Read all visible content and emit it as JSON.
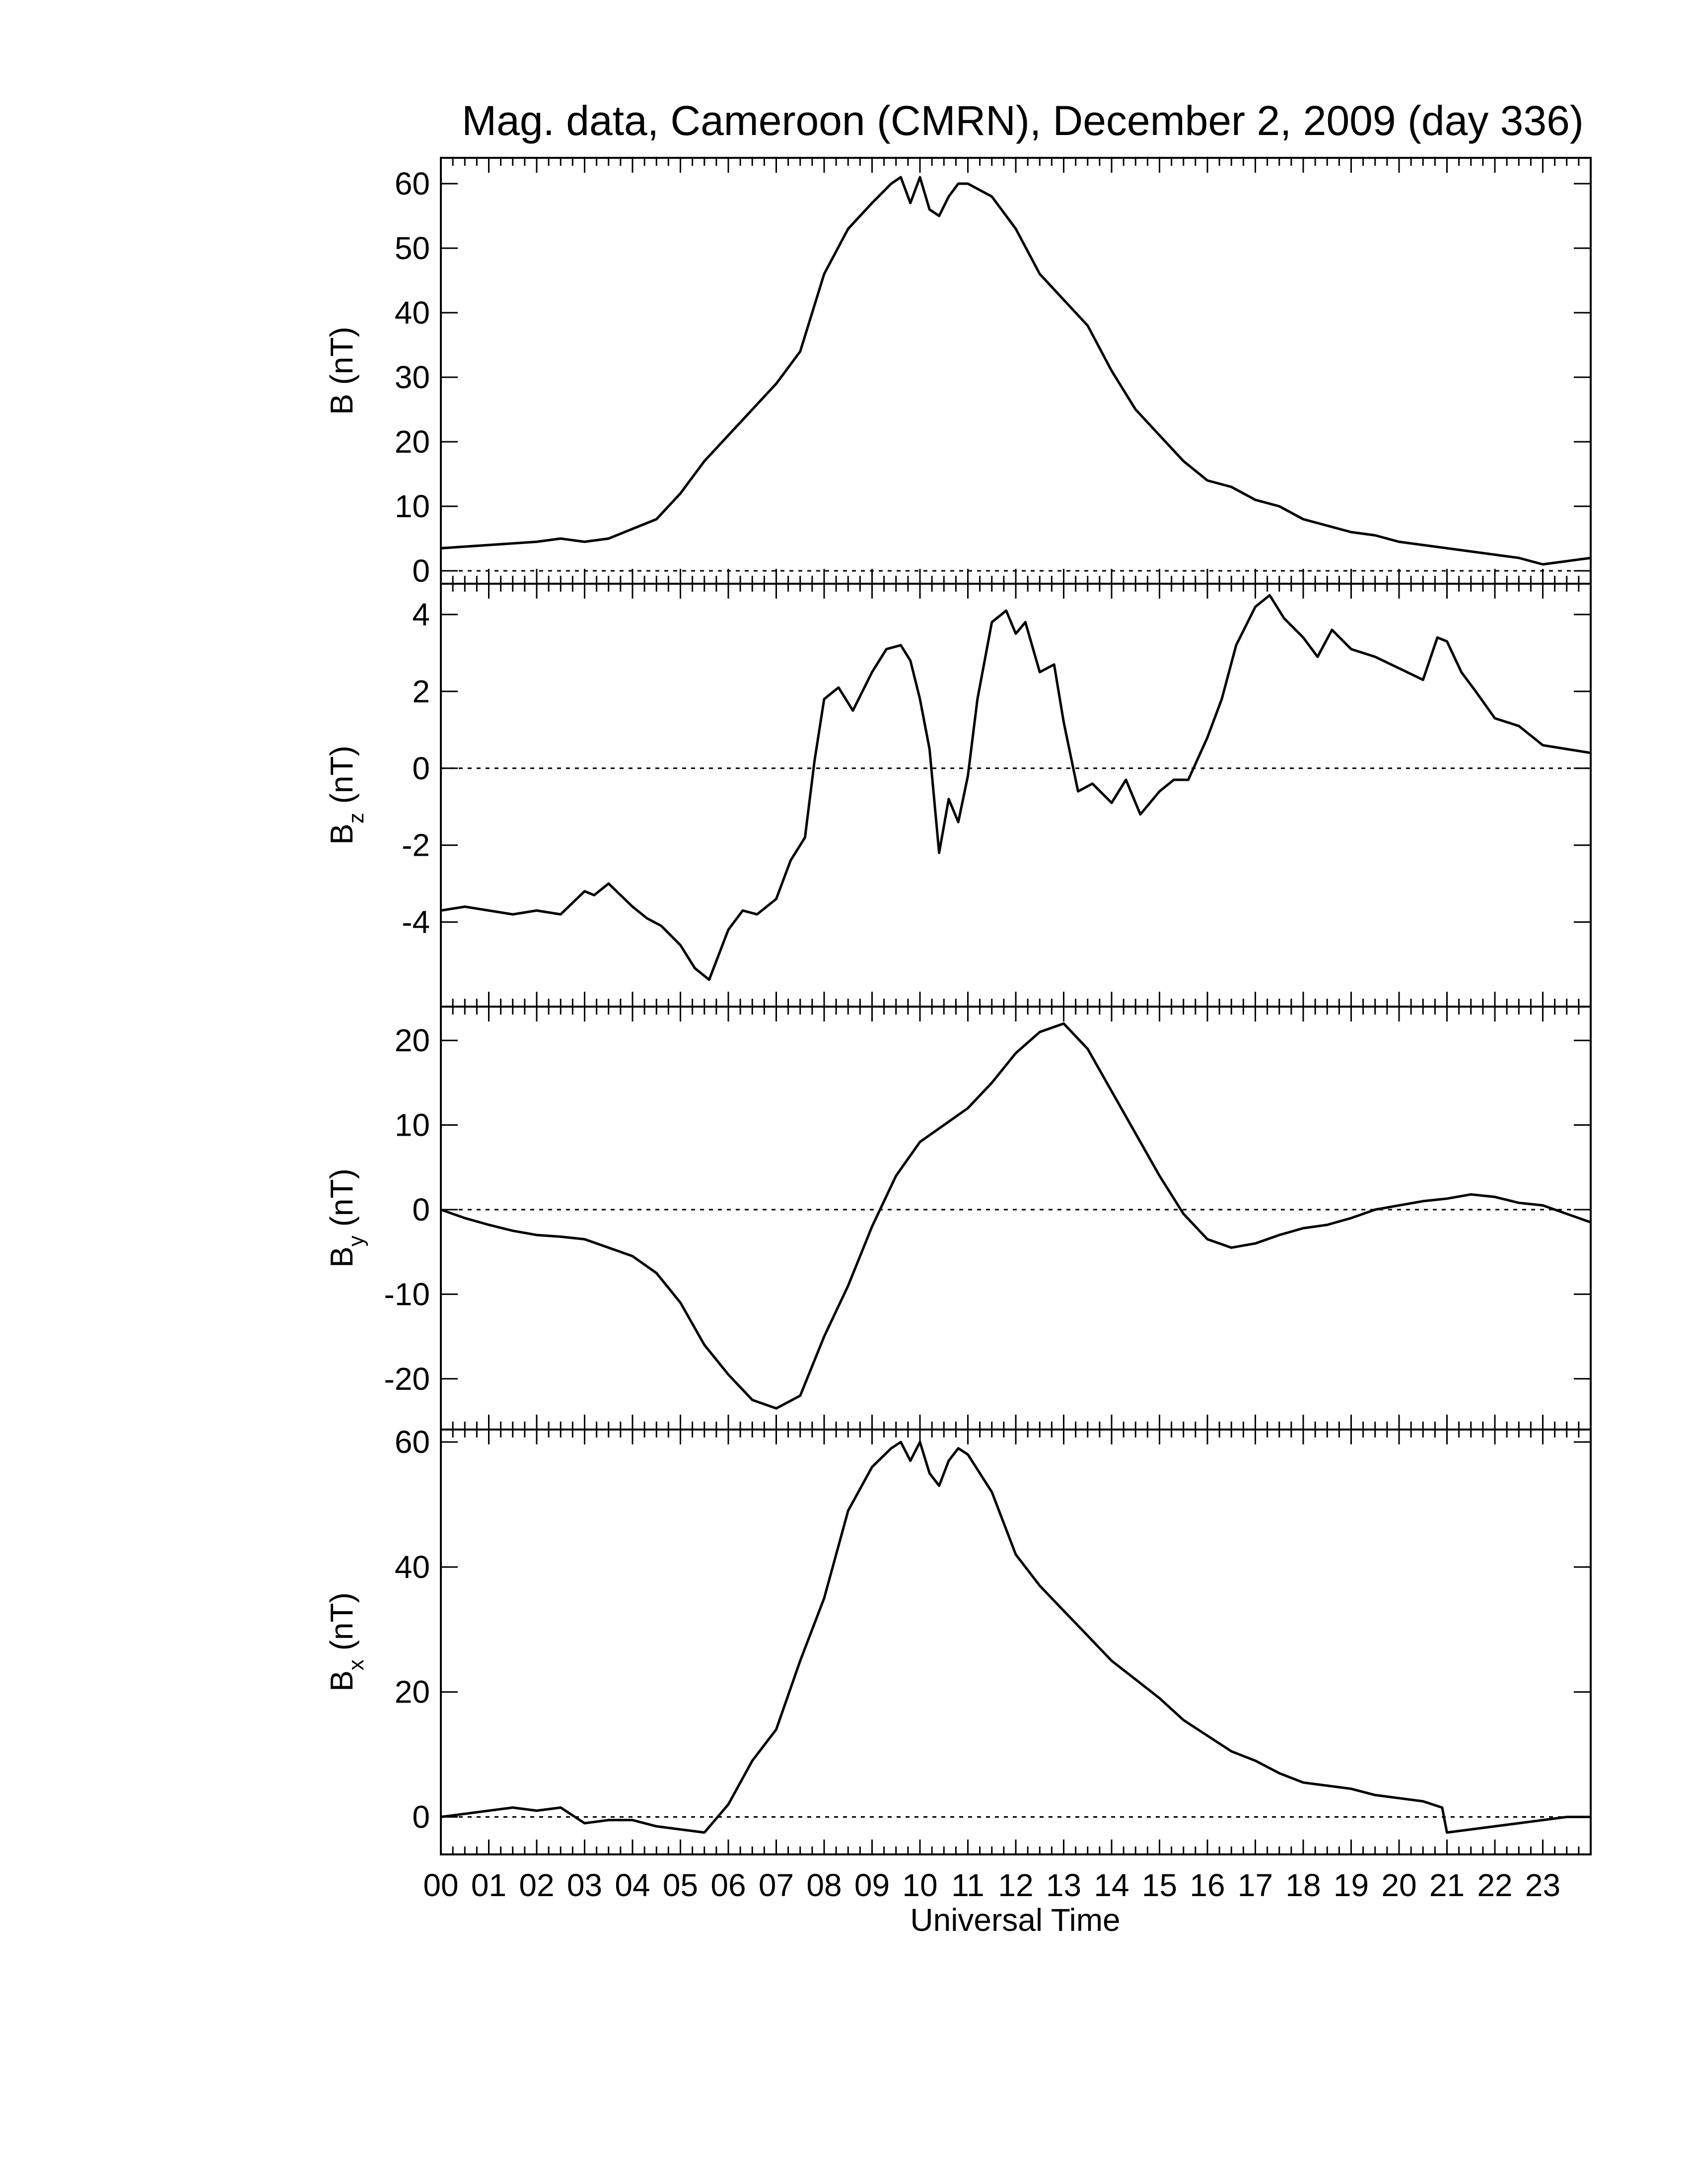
{
  "title": "Mag. data, Cameroon (CMRN), December 2, 2009 (day 336)",
  "chart_data": [
    {
      "type": "line",
      "panel": "B",
      "ylabel": "B (nT)",
      "ylabel_main": "B",
      "ylabel_sub": "",
      "ylabel_unit": "(nT)",
      "ylim": [
        -2,
        64
      ],
      "yticks": [
        0,
        10,
        20,
        30,
        40,
        50,
        60
      ],
      "zero_line": true,
      "x": [
        0,
        1,
        2,
        2.5,
        3,
        3.5,
        4,
        4.5,
        5,
        5.5,
        6,
        6.5,
        7,
        7.5,
        8,
        8.5,
        9,
        9.4,
        9.6,
        9.8,
        10,
        10.2,
        10.4,
        10.6,
        10.8,
        11,
        11.5,
        12,
        12.5,
        13,
        13.5,
        14,
        14.5,
        15,
        15.5,
        16,
        16.5,
        17,
        17.5,
        18,
        18.5,
        19,
        19.5,
        20,
        20.5,
        21,
        21.5,
        22,
        22.5,
        23,
        23.5,
        24
      ],
      "y": [
        3.5,
        4,
        4.5,
        5,
        4.5,
        5,
        6.5,
        8,
        12,
        17,
        21,
        25,
        29,
        34,
        46,
        53,
        57,
        60,
        61,
        57,
        61,
        56,
        55,
        58,
        60,
        60,
        58,
        53,
        46,
        42,
        38,
        31,
        25,
        21,
        17,
        14,
        13,
        11,
        10,
        8,
        7,
        6,
        5.5,
        4.5,
        4,
        3.5,
        3,
        2.5,
        2,
        1,
        1.5,
        2
      ]
    },
    {
      "type": "line",
      "panel": "Bz",
      "ylabel": "Bz (nT)",
      "ylabel_main": "B",
      "ylabel_sub": "z",
      "ylabel_unit": "(nT)",
      "ylim": [
        -6.2,
        4.8
      ],
      "yticks": [
        -4,
        -2,
        0,
        2,
        4
      ],
      "zero_line": true,
      "x": [
        0,
        0.5,
        1,
        1.5,
        2,
        2.5,
        3,
        3.2,
        3.5,
        4,
        4.3,
        4.6,
        5,
        5.3,
        5.6,
        6,
        6.3,
        6.6,
        7,
        7.3,
        7.6,
        7.8,
        8,
        8.3,
        8.6,
        9,
        9.3,
        9.6,
        9.8,
        10,
        10.2,
        10.4,
        10.6,
        10.8,
        11,
        11.2,
        11.5,
        11.8,
        12,
        12.2,
        12.5,
        12.8,
        13,
        13.3,
        13.6,
        14,
        14.3,
        14.6,
        15,
        15.3,
        15.6,
        16,
        16.3,
        16.6,
        17,
        17.3,
        17.6,
        18,
        18.3,
        18.6,
        19,
        19.5,
        20,
        20.5,
        20.8,
        21,
        21.3,
        21.6,
        22,
        22.5,
        23,
        23.5,
        24
      ],
      "y": [
        -3.7,
        -3.6,
        -3.7,
        -3.8,
        -3.7,
        -3.8,
        -3.2,
        -3.3,
        -3.0,
        -3.6,
        -3.9,
        -4.1,
        -4.6,
        -5.2,
        -5.5,
        -4.2,
        -3.7,
        -3.8,
        -3.4,
        -2.4,
        -1.8,
        0.2,
        1.8,
        2.1,
        1.5,
        2.5,
        3.1,
        3.2,
        2.8,
        1.8,
        0.5,
        -2.2,
        -0.8,
        -1.4,
        -0.2,
        1.8,
        3.8,
        4.1,
        3.5,
        3.8,
        2.5,
        2.7,
        1.2,
        -0.6,
        -0.4,
        -0.9,
        -0.3,
        -1.2,
        -0.6,
        -0.3,
        -0.3,
        0.8,
        1.8,
        3.2,
        4.2,
        4.5,
        3.9,
        3.4,
        2.9,
        3.6,
        3.1,
        2.9,
        2.6,
        2.3,
        3.4,
        3.3,
        2.5,
        2.0,
        1.3,
        1.1,
        0.6,
        0.5,
        0.4
      ]
    },
    {
      "type": "line",
      "panel": "By",
      "ylabel": "By (nT)",
      "ylabel_main": "B",
      "ylabel_sub": "y",
      "ylabel_unit": "(nT)",
      "ylim": [
        -26,
        24
      ],
      "yticks": [
        -20,
        -10,
        0,
        10,
        20
      ],
      "zero_line": true,
      "x": [
        0,
        0.5,
        1,
        1.5,
        2,
        2.5,
        3,
        3.5,
        4,
        4.5,
        5,
        5.5,
        6,
        6.5,
        7,
        7.5,
        8,
        8.5,
        9,
        9.5,
        10,
        10.5,
        11,
        11.5,
        12,
        12.5,
        13,
        13.5,
        14,
        14.5,
        15,
        15.5,
        16,
        16.5,
        17,
        17.5,
        18,
        18.5,
        19,
        19.5,
        20,
        20.5,
        21,
        21.5,
        22,
        22.5,
        23,
        23.5,
        24
      ],
      "y": [
        0,
        -1,
        -1.8,
        -2.5,
        -3,
        -3.2,
        -3.5,
        -4.5,
        -5.5,
        -7.5,
        -11,
        -16,
        -19.5,
        -22.5,
        -23.5,
        -22,
        -15,
        -9,
        -2,
        4,
        8,
        10,
        12,
        15,
        18.5,
        21,
        22,
        19,
        14,
        9,
        4,
        -0.5,
        -3.5,
        -4.5,
        -4,
        -3,
        -2.2,
        -1.8,
        -1,
        0,
        0.5,
        1,
        1.3,
        1.8,
        1.5,
        0.8,
        0.5,
        -0.5,
        -1.5
      ]
    },
    {
      "type": "line",
      "panel": "Bx",
      "ylabel": "Bx (nT)",
      "ylabel_main": "B",
      "ylabel_sub": "x",
      "ylabel_unit": "(nT)",
      "ylim": [
        -6,
        62
      ],
      "yticks": [
        0,
        20,
        40,
        60
      ],
      "zero_line": true,
      "x": [
        0,
        0.5,
        1,
        1.5,
        2,
        2.5,
        3,
        3.5,
        4,
        4.5,
        5,
        5.5,
        6,
        6.5,
        7,
        7.5,
        8,
        8.5,
        9,
        9.4,
        9.6,
        9.8,
        10,
        10.2,
        10.4,
        10.6,
        10.8,
        11,
        11.5,
        12,
        12.5,
        13,
        13.5,
        14,
        14.5,
        15,
        15.5,
        16,
        16.5,
        17,
        17.5,
        18,
        18.5,
        19,
        19.5,
        20,
        20.5,
        20.9,
        21,
        21.5,
        22,
        22.5,
        23,
        23.5,
        24
      ],
      "y": [
        0,
        0.5,
        1,
        1.5,
        1,
        1.5,
        -1,
        -0.5,
        -0.5,
        -1.5,
        -2,
        -2.5,
        2,
        9,
        14,
        25,
        35,
        49,
        56,
        59,
        60,
        57,
        60,
        55,
        53,
        57,
        59,
        58,
        52,
        42,
        37,
        33,
        29,
        25,
        22,
        19,
        15.5,
        13,
        10.5,
        9,
        7,
        5.5,
        5,
        4.5,
        3.5,
        3,
        2.5,
        1.5,
        -2.5,
        -2,
        -1.5,
        -1,
        -0.5,
        0,
        0
      ]
    }
  ],
  "x_axis": {
    "label": "Universal Time",
    "xlim": [
      0,
      24
    ],
    "tick_labels": [
      "00",
      "01",
      "02",
      "03",
      "04",
      "05",
      "06",
      "07",
      "08",
      "09",
      "10",
      "11",
      "12",
      "13",
      "14",
      "15",
      "16",
      "17",
      "18",
      "19",
      "20",
      "21",
      "22",
      "23"
    ]
  }
}
